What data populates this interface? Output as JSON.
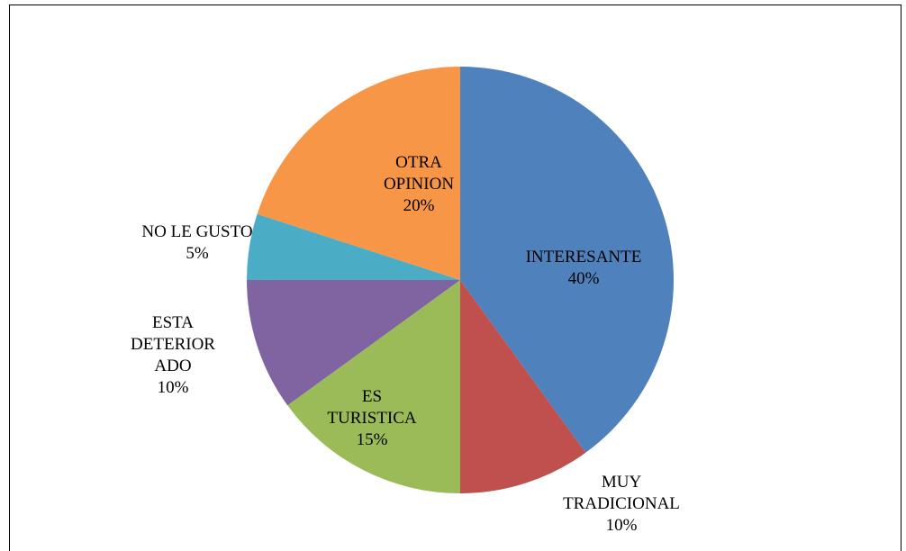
{
  "chart_data": {
    "type": "pie",
    "categories": [
      "INTERESANTE",
      "MUY TRADICIONAL",
      "ES TURISTICA",
      "ESTA DETERIORADO",
      "NO LE GUSTO",
      "OTRA OPINION"
    ],
    "values": [
      40,
      10,
      15,
      10,
      5,
      20
    ],
    "value_labels": [
      "40%",
      "10%",
      "15%",
      "10%",
      "5%",
      "20%"
    ],
    "colors": [
      "#4f81bd",
      "#c0504d",
      "#9bbb59",
      "#8064a2",
      "#4bacc6",
      "#f79646"
    ]
  }
}
